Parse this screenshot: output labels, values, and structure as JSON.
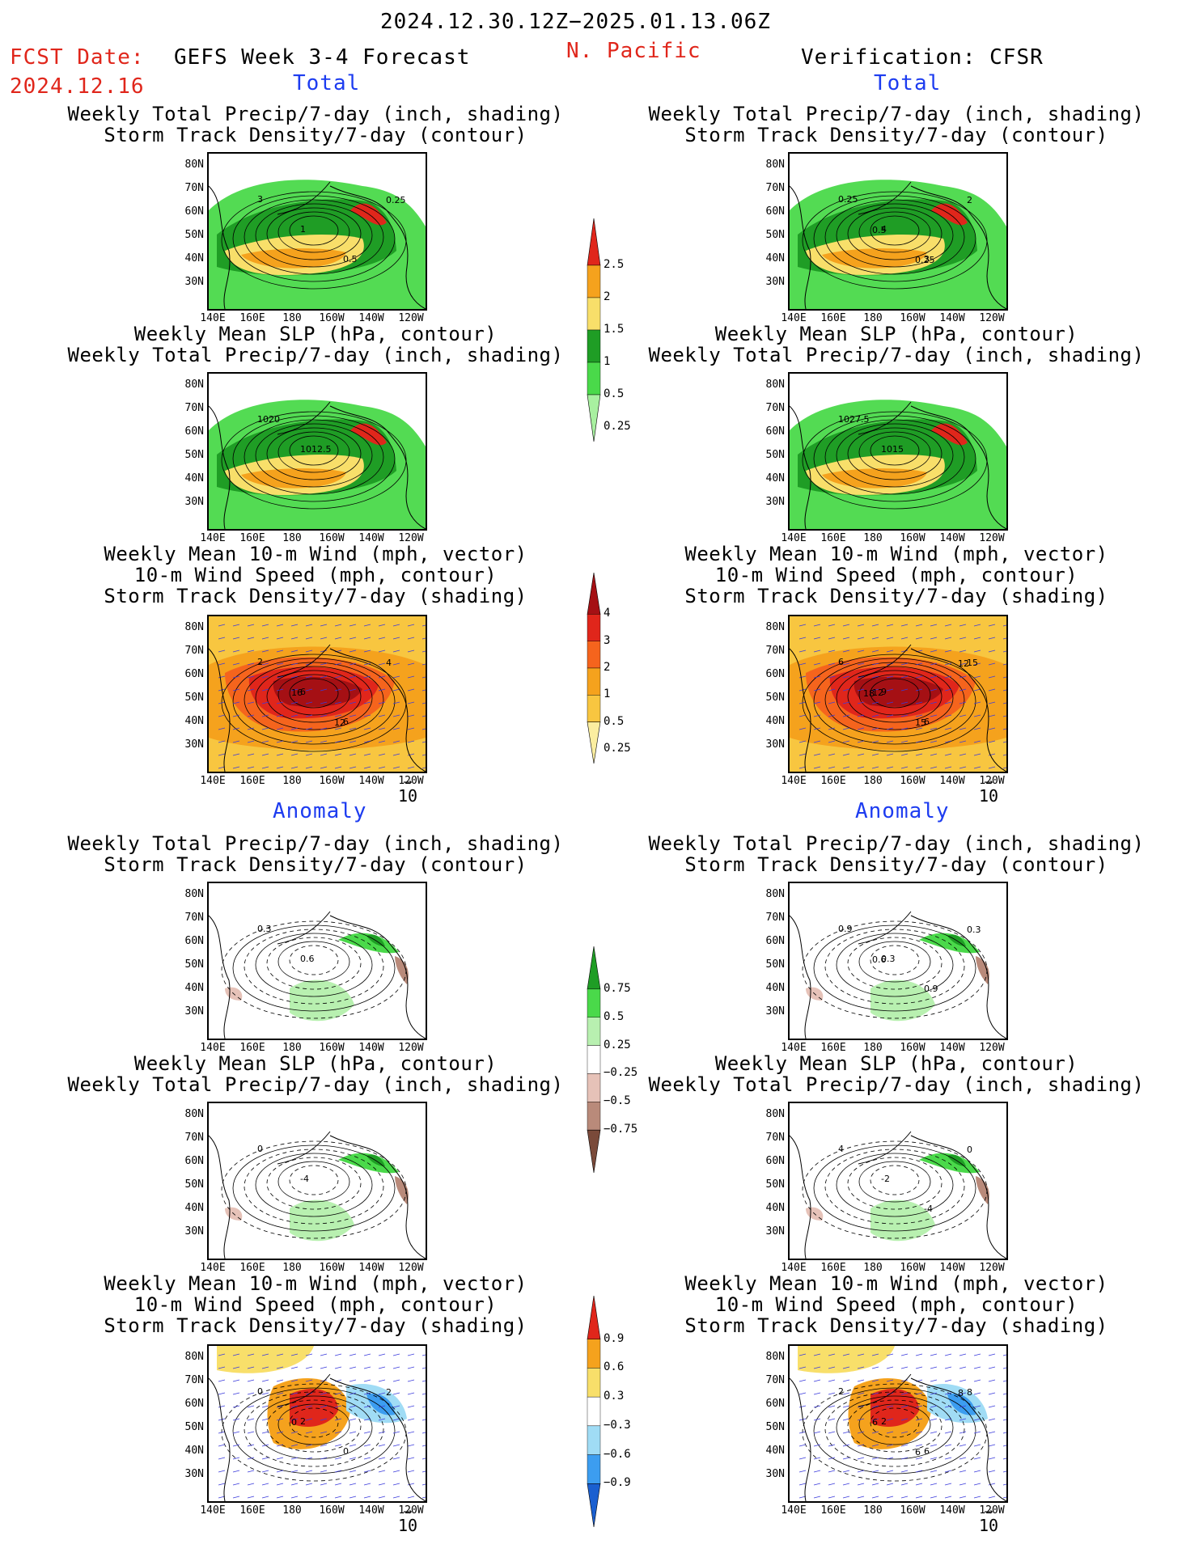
{
  "header": {
    "period": "2024.12.30.12Z−2025.01.13.06Z",
    "fcst_label": "FCST Date:",
    "fcst_date": "2024.12.16",
    "model_title": "GEFS Week 3-4 Forecast",
    "region": "N. Pacific",
    "verification": "Verification: CFSR"
  },
  "sections": {
    "total_left": "Total",
    "total_right": "Total",
    "anomaly_left": "Anomaly",
    "anomaly_right": "Anomaly"
  },
  "titles": {
    "precip_storm": [
      "Weekly Total Precip/7-day (inch, shading)",
      "Storm Track Density/7-day (contour)"
    ],
    "slp_precip": [
      "Weekly Mean SLP (hPa, contour)",
      "Weekly Total Precip/7-day (inch, shading)"
    ],
    "wind": [
      "Weekly Mean 10-m Wind (mph, vector)",
      "10-m Wind Speed (mph, contour)",
      "Storm Track Density/7-day (shading)"
    ]
  },
  "axes": {
    "lat_ticks": [
      "80N",
      "70N",
      "60N",
      "50N",
      "40N",
      "30N"
    ],
    "lon_ticks": [
      "140E",
      "160E",
      "180",
      "160W",
      "140W",
      "120W"
    ],
    "vector_ref": "10"
  },
  "colorbars": {
    "precip_total": {
      "labels": [
        "2.5",
        "2",
        "1.5",
        "1",
        "0.5",
        "0.25"
      ],
      "colors": [
        "#e0261b",
        "#f5a21d",
        "#f8df6a",
        "#1f9d25",
        "#4ad94a",
        "#a8f0a0"
      ]
    },
    "storm_total": {
      "labels": [
        "4",
        "3",
        "2",
        "1",
        "0.5",
        "0.25"
      ],
      "colors": [
        "#a51014",
        "#e0261b",
        "#f5641d",
        "#f5a21d",
        "#f8c640",
        "#fbeea0"
      ]
    },
    "precip_anom": {
      "labels": [
        "0.75",
        "0.5",
        "0.25",
        "−0.25",
        "−0.5",
        "−0.75"
      ],
      "colors": [
        "#1f9d25",
        "#4ad94a",
        "#b8f0b0",
        "#ffffff",
        "#e6c2b8",
        "#b98a7a",
        "#7a4a3a"
      ]
    },
    "storm_anom": {
      "labels": [
        "0.9",
        "0.6",
        "0.3",
        "−0.3",
        "−0.6",
        "−0.9"
      ],
      "colors": [
        "#e0261b",
        "#f5a21d",
        "#f8df6a",
        "#ffffff",
        "#a0dcf5",
        "#3c9df0",
        "#1a5fd0"
      ]
    }
  },
  "contour_labels": {
    "l1": [
      "3",
      "1",
      "0.5",
      "0.25"
    ],
    "r1": [
      "0.25",
      "4",
      "3",
      "2",
      "0.5",
      "0.25"
    ],
    "l2": [
      "1020",
      "1012.5"
    ],
    "r2": [
      "1027.5",
      "1015"
    ],
    "l3": [
      "2",
      "6",
      "6",
      "4",
      "16",
      "12"
    ],
    "r3": [
      "6",
      "9",
      "6",
      "15",
      "12",
      "15",
      "12",
      "18"
    ],
    "l4": [
      "0.3",
      "0.6"
    ],
    "r4": [
      "0.9",
      "0.3",
      "0.9",
      "0.3",
      "0.6"
    ],
    "l5": [
      "0",
      "-4"
    ],
    "r5": [
      "4",
      "-2",
      "-4",
      "0"
    ],
    "l6": [
      "0",
      "2",
      "0",
      "2",
      "0"
    ],
    "r6": [
      "2",
      "2",
      "6",
      "8",
      "6",
      "6",
      "8"
    ]
  }
}
